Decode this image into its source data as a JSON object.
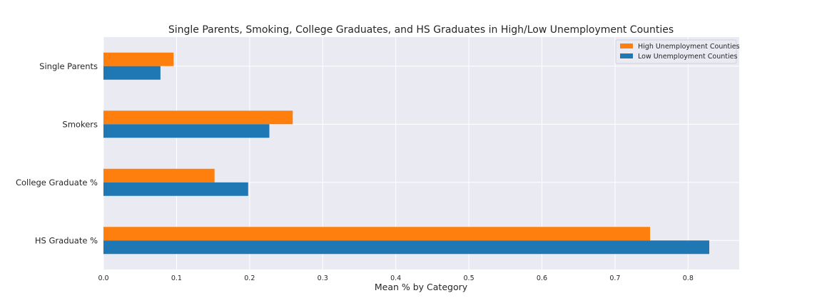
{
  "chart_data": {
    "type": "bar",
    "orientation": "horizontal",
    "title": "Single Parents, Smoking, College Graduates, and HS Graduates in High/Low Unemployment Counties",
    "xlabel": "Mean % by Category",
    "ylabel": "",
    "xlim": [
      0,
      0.87
    ],
    "xticks": [
      "0.0",
      "0.1",
      "0.2",
      "0.3",
      "0.4",
      "0.5",
      "0.6",
      "0.7",
      "0.8"
    ],
    "categories": [
      "Single Parents",
      "Smokers",
      "College Graduate %",
      "HS Graduate %"
    ],
    "series": [
      {
        "name": "High Unemployment Counties",
        "color": "#ff7f0e",
        "values": [
          0.096,
          0.259,
          0.152,
          0.748
        ]
      },
      {
        "name": "Low Unemployment Counties",
        "color": "#1f77b4",
        "values": [
          0.078,
          0.227,
          0.198,
          0.829
        ]
      }
    ],
    "grid": true,
    "legend_position": "top-right",
    "background_color": "#eaeaf2"
  }
}
